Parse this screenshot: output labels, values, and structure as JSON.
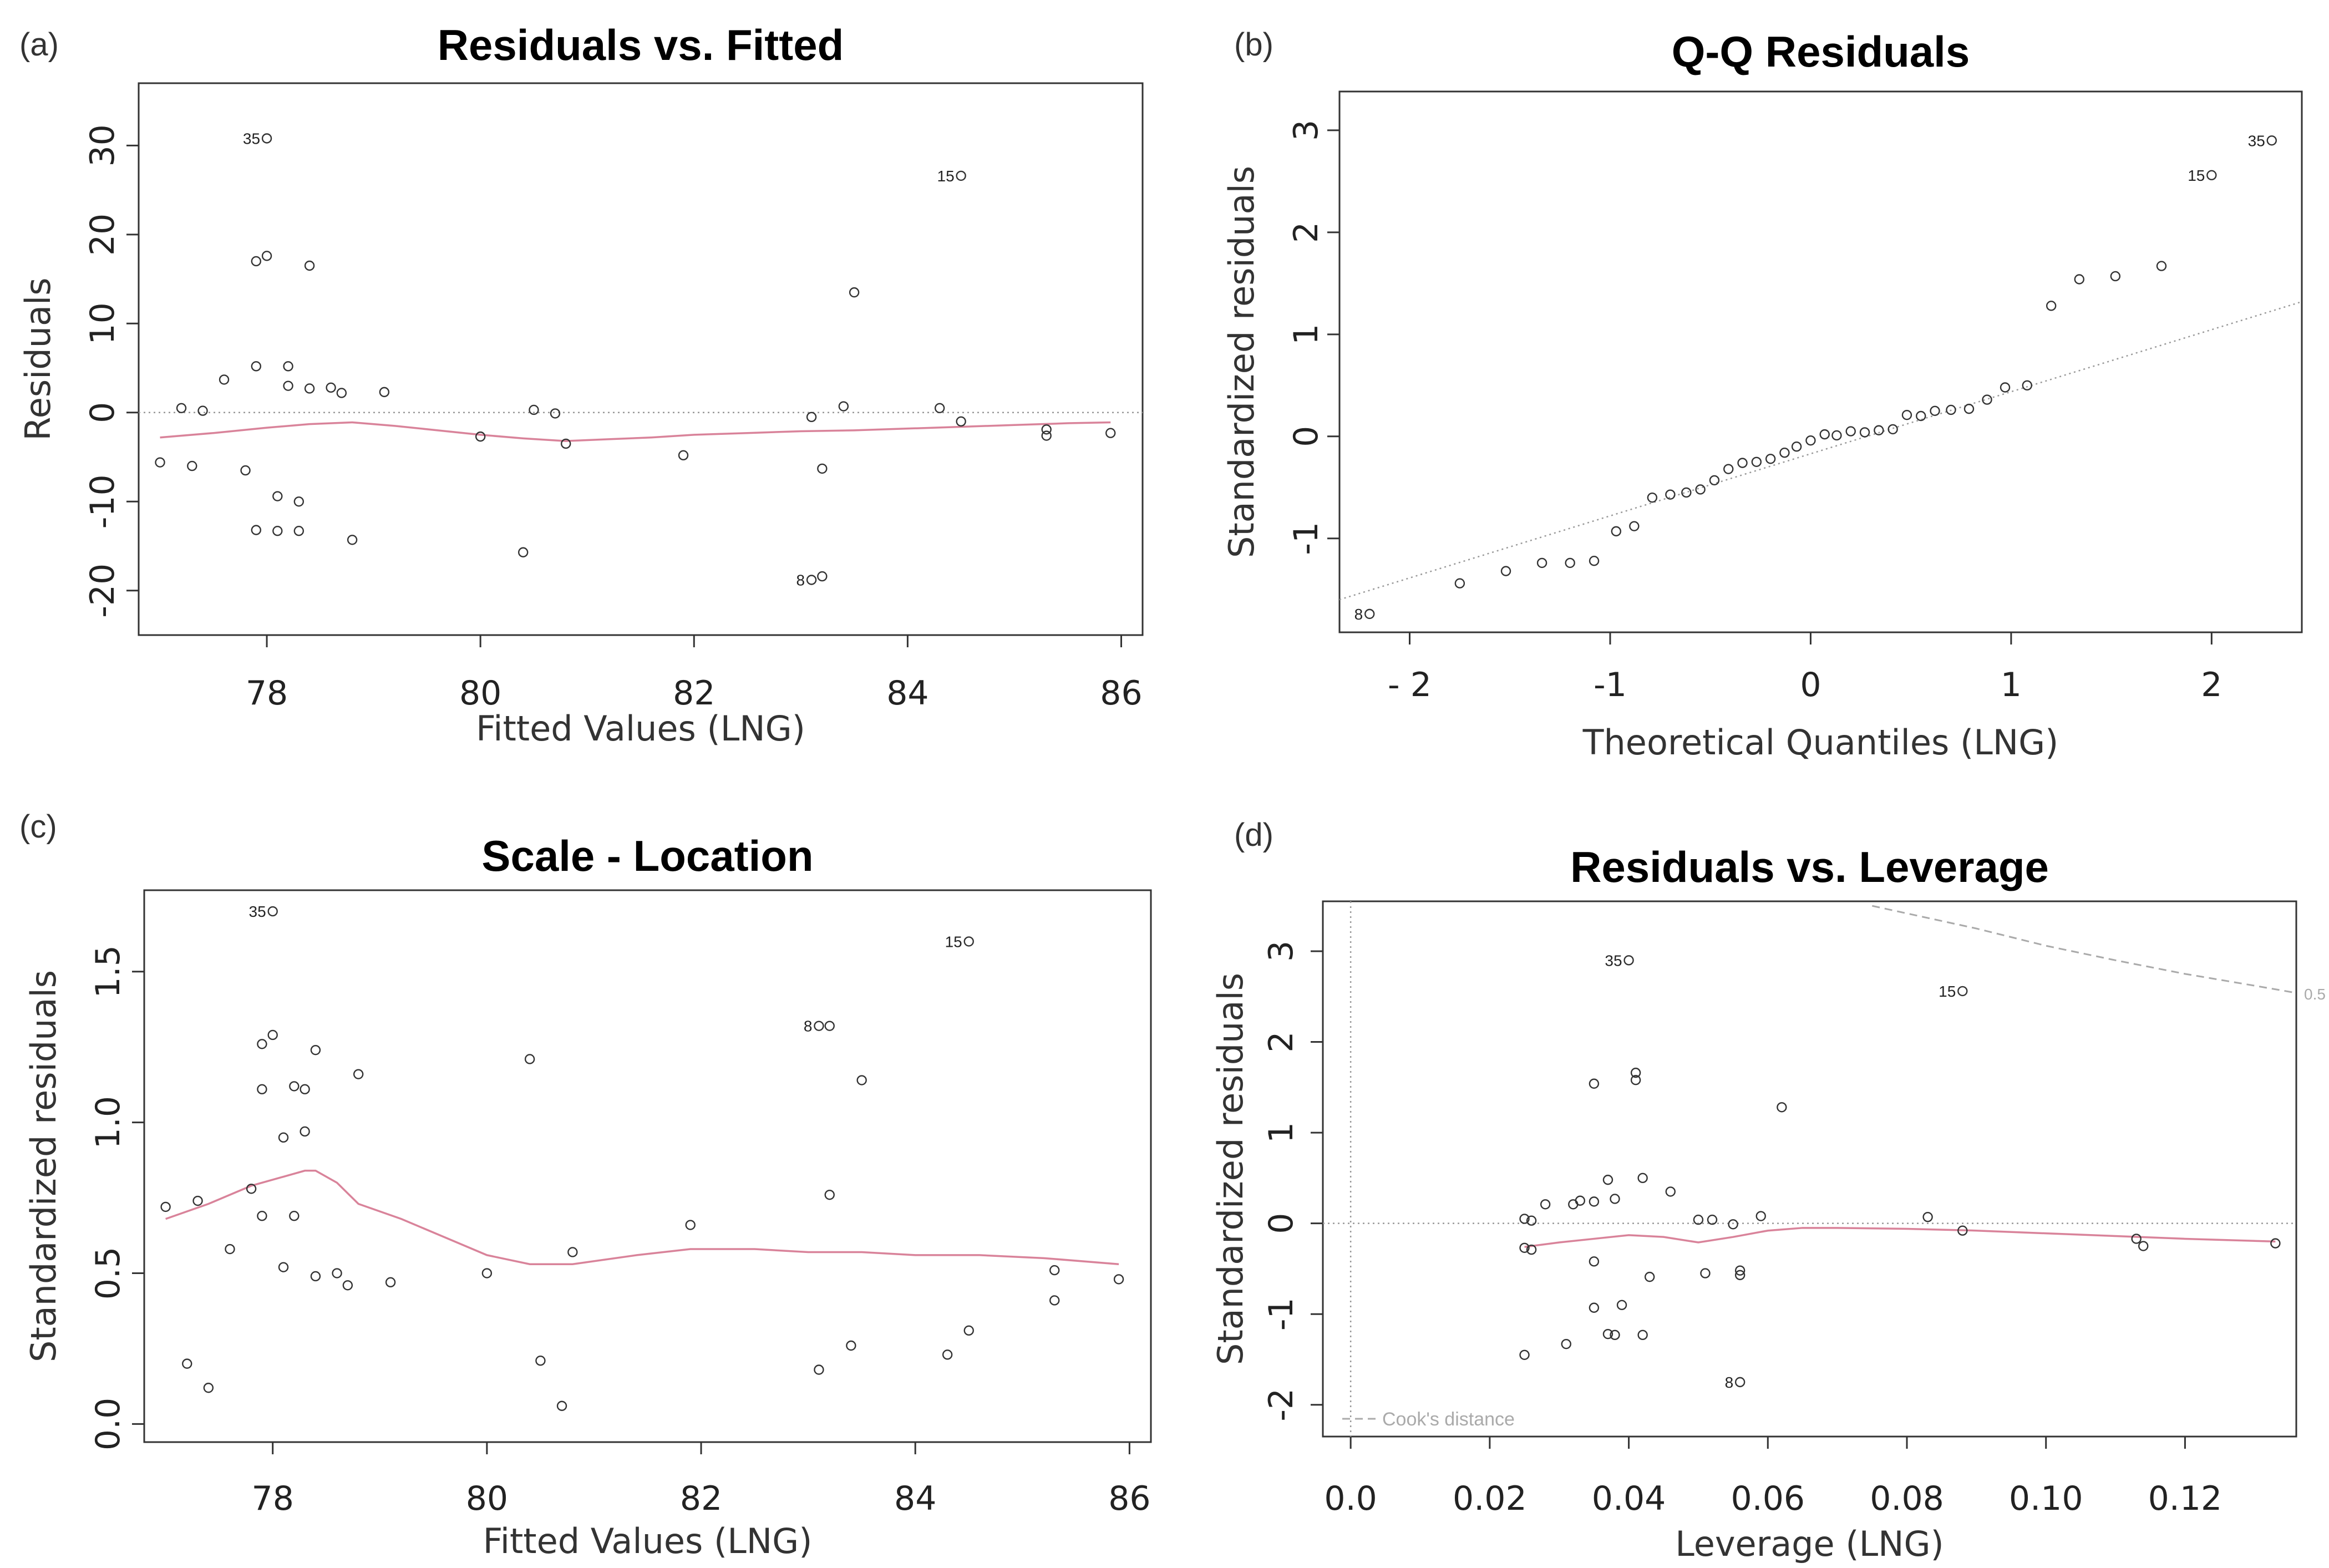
{
  "chart_data": [
    {
      "id": "a",
      "type": "scatter",
      "panel_tag": "(a)",
      "title": "Residuals vs. Fitted",
      "xlabel": "Fitted Values (LNG)",
      "ylabel": "Residuals",
      "xlim": [
        76.8,
        86.2
      ],
      "ylim": [
        -25,
        37
      ],
      "xticks": [
        "78",
        "80",
        "82",
        "84",
        "86"
      ],
      "yticks": [
        "-20",
        "-10",
        "0",
        "10",
        "20",
        "30"
      ],
      "y_tick_rotated": true,
      "reference_line": {
        "style": "dotted",
        "y": 0
      },
      "smoother_color": "#d9839a",
      "points": [
        [
          77.0,
          -5.6
        ],
        [
          77.2,
          0.5
        ],
        [
          77.3,
          -6
        ],
        [
          77.4,
          0.2
        ],
        [
          77.6,
          3.7
        ],
        [
          77.8,
          -6.5
        ],
        [
          77.9,
          5.2
        ],
        [
          77.9,
          -13.2
        ],
        [
          77.9,
          17
        ],
        [
          78.0,
          17.6
        ],
        [
          78.0,
          30.8
        ],
        [
          78.1,
          -9.4
        ],
        [
          78.1,
          -13.3
        ],
        [
          78.2,
          3
        ],
        [
          78.2,
          5.2
        ],
        [
          78.3,
          -13.3
        ],
        [
          78.3,
          -10
        ],
        [
          78.4,
          16.5
        ],
        [
          78.4,
          2.7
        ],
        [
          78.6,
          2.8
        ],
        [
          78.7,
          2.2
        ],
        [
          78.8,
          -14.3
        ],
        [
          79.1,
          2.3
        ],
        [
          80.0,
          -2.7
        ],
        [
          80.4,
          -15.7
        ],
        [
          80.5,
          0.3
        ],
        [
          80.7,
          -0.1
        ],
        [
          80.8,
          -3.5
        ],
        [
          81.9,
          -4.8
        ],
        [
          83.1,
          -18.8
        ],
        [
          83.1,
          -0.5
        ],
        [
          83.2,
          -18.4
        ],
        [
          83.2,
          -6.3
        ],
        [
          83.4,
          0.7
        ],
        [
          83.5,
          13.5
        ],
        [
          84.3,
          0.5
        ],
        [
          84.5,
          26.6
        ],
        [
          84.5,
          -1
        ],
        [
          85.3,
          -1.9
        ],
        [
          85.3,
          -2.6
        ],
        [
          85.9,
          -2.3
        ]
      ],
      "labels": [
        {
          "text": "35",
          "x": 78.0,
          "y": 30.8
        },
        {
          "text": "15",
          "x": 84.5,
          "y": 26.6
        },
        {
          "text": "8",
          "x": 83.1,
          "y": -18.8
        }
      ],
      "smoother": [
        [
          77.0,
          -2.8
        ],
        [
          77.5,
          -2.3
        ],
        [
          78.0,
          -1.7
        ],
        [
          78.4,
          -1.3
        ],
        [
          78.8,
          -1.1
        ],
        [
          79.2,
          -1.5
        ],
        [
          79.6,
          -2
        ],
        [
          80.0,
          -2.5
        ],
        [
          80.4,
          -2.9
        ],
        [
          80.8,
          -3.2
        ],
        [
          81.2,
          -3
        ],
        [
          81.6,
          -2.8
        ],
        [
          82.0,
          -2.5
        ],
        [
          82.5,
          -2.3
        ],
        [
          83.0,
          -2.1
        ],
        [
          83.5,
          -2
        ],
        [
          84.0,
          -1.8
        ],
        [
          84.5,
          -1.6
        ],
        [
          85.0,
          -1.4
        ],
        [
          85.5,
          -1.2
        ],
        [
          85.9,
          -1.1
        ]
      ]
    },
    {
      "id": "b",
      "type": "scatter",
      "panel_tag": "(b)",
      "title": "Q-Q Residuals",
      "xlabel": "Theoretical Quantiles (LNG)",
      "ylabel": "Standardized residuals",
      "xlim": [
        -2.35,
        2.45
      ],
      "ylim": [
        -1.92,
        3.38
      ],
      "xticks": [
        "- 2",
        "-1",
        "0",
        "1",
        "2"
      ],
      "yticks": [
        "-1",
        "0",
        "1",
        "2",
        "3"
      ],
      "y_tick_rotated": true,
      "reference_line": {
        "style": "dotted",
        "points": [
          [
            -2.35,
            -1.6
          ],
          [
            2.45,
            1.32
          ]
        ]
      },
      "points": [
        [
          -2.2,
          -1.74
        ],
        [
          -1.75,
          -1.44
        ],
        [
          -1.52,
          -1.32
        ],
        [
          -1.34,
          -1.24
        ],
        [
          -1.2,
          -1.24
        ],
        [
          -1.08,
          -1.22
        ],
        [
          -0.97,
          -0.93
        ],
        [
          -0.88,
          -0.88
        ],
        [
          -0.79,
          -0.6
        ],
        [
          -0.7,
          -0.57
        ],
        [
          -0.62,
          -0.55
        ],
        [
          -0.55,
          -0.52
        ],
        [
          -0.48,
          -0.43
        ],
        [
          -0.41,
          -0.32
        ],
        [
          -0.34,
          -0.26
        ],
        [
          -0.27,
          -0.25
        ],
        [
          -0.2,
          -0.22
        ],
        [
          -0.13,
          -0.16
        ],
        [
          -0.07,
          -0.1
        ],
        [
          0.0,
          -0.04
        ],
        [
          0.07,
          0.02
        ],
        [
          0.13,
          0.01
        ],
        [
          0.2,
          0.05
        ],
        [
          0.27,
          0.04
        ],
        [
          0.34,
          0.06
        ],
        [
          0.41,
          0.07
        ],
        [
          0.48,
          0.21
        ],
        [
          0.55,
          0.2
        ],
        [
          0.62,
          0.25
        ],
        [
          0.7,
          0.26
        ],
        [
          0.79,
          0.27
        ],
        [
          0.88,
          0.36
        ],
        [
          0.97,
          0.48
        ],
        [
          1.08,
          0.5
        ],
        [
          1.2,
          1.28
        ],
        [
          1.34,
          1.54
        ],
        [
          1.52,
          1.57
        ],
        [
          1.75,
          1.67
        ],
        [
          2.0,
          2.56
        ],
        [
          2.3,
          2.9
        ]
      ],
      "labels": [
        {
          "text": "35",
          "x": 2.3,
          "y": 2.9
        },
        {
          "text": "15",
          "x": 2.0,
          "y": 2.56
        },
        {
          "text": "8",
          "x": -2.2,
          "y": -1.74
        }
      ]
    },
    {
      "id": "c",
      "type": "scatter",
      "panel_tag": "(c)",
      "title": "Scale - Location",
      "xlabel": "Fitted Values (LNG)",
      "ylabel": "Standardized residuals",
      "xlim": [
        76.8,
        86.2
      ],
      "ylim": [
        -0.06,
        1.77
      ],
      "xticks": [
        "78",
        "80",
        "82",
        "84",
        "86"
      ],
      "yticks": [
        "0.0",
        "0.5",
        "1.0",
        "1.5"
      ],
      "y_tick_rotated": true,
      "smoother_color": "#d9839a",
      "points": [
        [
          77.0,
          0.72
        ],
        [
          77.2,
          0.2
        ],
        [
          77.3,
          0.74
        ],
        [
          77.4,
          0.12
        ],
        [
          77.6,
          0.58
        ],
        [
          77.8,
          0.78
        ],
        [
          77.9,
          0.69
        ],
        [
          77.9,
          1.11
        ],
        [
          77.9,
          1.26
        ],
        [
          78.0,
          1.29
        ],
        [
          78.0,
          1.7
        ],
        [
          78.1,
          0.95
        ],
        [
          78.1,
          0.52
        ],
        [
          78.2,
          1.12
        ],
        [
          78.2,
          0.69
        ],
        [
          78.3,
          1.11
        ],
        [
          78.3,
          0.97
        ],
        [
          78.4,
          0.49
        ],
        [
          78.4,
          1.24
        ],
        [
          78.6,
          0.5
        ],
        [
          78.7,
          0.46
        ],
        [
          78.8,
          1.16
        ],
        [
          79.1,
          0.47
        ],
        [
          80.0,
          0.5
        ],
        [
          80.4,
          1.21
        ],
        [
          80.5,
          0.21
        ],
        [
          80.7,
          0.06
        ],
        [
          80.8,
          0.57
        ],
        [
          81.9,
          0.66
        ],
        [
          83.1,
          0.18
        ],
        [
          83.1,
          1.32
        ],
        [
          83.2,
          1.32
        ],
        [
          83.2,
          0.76
        ],
        [
          83.4,
          0.26
        ],
        [
          83.5,
          1.14
        ],
        [
          84.3,
          0.23
        ],
        [
          84.5,
          1.6
        ],
        [
          84.5,
          0.31
        ],
        [
          85.3,
          0.41
        ],
        [
          85.3,
          0.51
        ],
        [
          85.9,
          0.48
        ]
      ],
      "labels": [
        {
          "text": "35",
          "x": 78.0,
          "y": 1.7
        },
        {
          "text": "15",
          "x": 84.5,
          "y": 1.6
        },
        {
          "text": "8",
          "x": 83.1,
          "y": 1.32
        }
      ],
      "smoother": [
        [
          77.0,
          0.68
        ],
        [
          77.4,
          0.73
        ],
        [
          77.8,
          0.79
        ],
        [
          78.1,
          0.82
        ],
        [
          78.3,
          0.84
        ],
        [
          78.4,
          0.84
        ],
        [
          78.6,
          0.8
        ],
        [
          78.8,
          0.73
        ],
        [
          79.2,
          0.68
        ],
        [
          79.6,
          0.62
        ],
        [
          80.0,
          0.56
        ],
        [
          80.4,
          0.53
        ],
        [
          80.8,
          0.53
        ],
        [
          81.4,
          0.56
        ],
        [
          81.9,
          0.58
        ],
        [
          82.5,
          0.58
        ],
        [
          83.0,
          0.57
        ],
        [
          83.5,
          0.57
        ],
        [
          84.0,
          0.56
        ],
        [
          84.6,
          0.56
        ],
        [
          85.2,
          0.55
        ],
        [
          85.9,
          0.53
        ]
      ]
    },
    {
      "id": "d",
      "type": "scatter",
      "panel_tag": "(d)",
      "title": "Residuals vs. Leverage",
      "xlabel": "Leverage (LNG)",
      "ylabel": "Standardized residuals",
      "xlim": [
        -0.004,
        0.136
      ],
      "ylim": [
        -2.35,
        3.55
      ],
      "xticks": [
        "0.0",
        "0.02",
        "0.04",
        "0.06",
        "0.08",
        "0.10",
        "0.12"
      ],
      "yticks": [
        "-2",
        "-1",
        "0",
        "1",
        "2",
        "3"
      ],
      "y_tick_rotated": true,
      "reference_lines": {
        "x": 0,
        "y": 0,
        "style": "dotted"
      },
      "smoother_color": "#d9839a",
      "cooks_distance": {
        "label": "Cook's distance",
        "contour_label": "0.5",
        "curve": [
          [
            0.075,
            3.5
          ],
          [
            0.09,
            3.25
          ],
          [
            0.1,
            3.06
          ],
          [
            0.11,
            2.9
          ],
          [
            0.12,
            2.75
          ],
          [
            0.13,
            2.62
          ],
          [
            0.136,
            2.54
          ]
        ]
      },
      "points": [
        [
          0.025,
          -1.45
        ],
        [
          0.025,
          -0.27
        ],
        [
          0.025,
          0.05
        ],
        [
          0.026,
          0.03
        ],
        [
          0.026,
          -0.29
        ],
        [
          0.028,
          0.21
        ],
        [
          0.031,
          -1.33
        ],
        [
          0.032,
          0.21
        ],
        [
          0.033,
          0.25
        ],
        [
          0.035,
          -0.42
        ],
        [
          0.035,
          0.24
        ],
        [
          0.035,
          1.54
        ],
        [
          0.035,
          -0.93
        ],
        [
          0.037,
          0.48
        ],
        [
          0.037,
          -1.22
        ],
        [
          0.038,
          -1.23
        ],
        [
          0.038,
          0.27
        ],
        [
          0.039,
          -0.9
        ],
        [
          0.04,
          2.9
        ],
        [
          0.041,
          1.66
        ],
        [
          0.041,
          1.58
        ],
        [
          0.042,
          -1.23
        ],
        [
          0.042,
          0.5
        ],
        [
          0.043,
          -0.59
        ],
        [
          0.046,
          0.35
        ],
        [
          0.05,
          0.04
        ],
        [
          0.051,
          -0.55
        ],
        [
          0.052,
          0.04
        ],
        [
          0.055,
          -0.01
        ],
        [
          0.056,
          -0.52
        ],
        [
          0.056,
          -0.57
        ],
        [
          0.056,
          -1.75
        ],
        [
          0.059,
          0.08
        ],
        [
          0.062,
          1.28
        ],
        [
          0.083,
          0.07
        ],
        [
          0.088,
          2.56
        ],
        [
          0.088,
          -0.08
        ],
        [
          0.113,
          -0.17
        ],
        [
          0.114,
          -0.25
        ],
        [
          0.133,
          -0.22
        ]
      ],
      "labels": [
        {
          "text": "35",
          "x": 0.04,
          "y": 2.9
        },
        {
          "text": "15",
          "x": 0.088,
          "y": 2.56
        },
        {
          "text": "8",
          "x": 0.056,
          "y": -1.75
        }
      ],
      "smoother": [
        [
          0.025,
          -0.26
        ],
        [
          0.03,
          -0.21
        ],
        [
          0.035,
          -0.17
        ],
        [
          0.04,
          -0.13
        ],
        [
          0.045,
          -0.15
        ],
        [
          0.05,
          -0.21
        ],
        [
          0.055,
          -0.15
        ],
        [
          0.06,
          -0.08
        ],
        [
          0.065,
          -0.05
        ],
        [
          0.07,
          -0.05
        ],
        [
          0.08,
          -0.06
        ],
        [
          0.09,
          -0.08
        ],
        [
          0.1,
          -0.11
        ],
        [
          0.11,
          -0.14
        ],
        [
          0.12,
          -0.17
        ],
        [
          0.133,
          -0.2
        ]
      ]
    }
  ]
}
